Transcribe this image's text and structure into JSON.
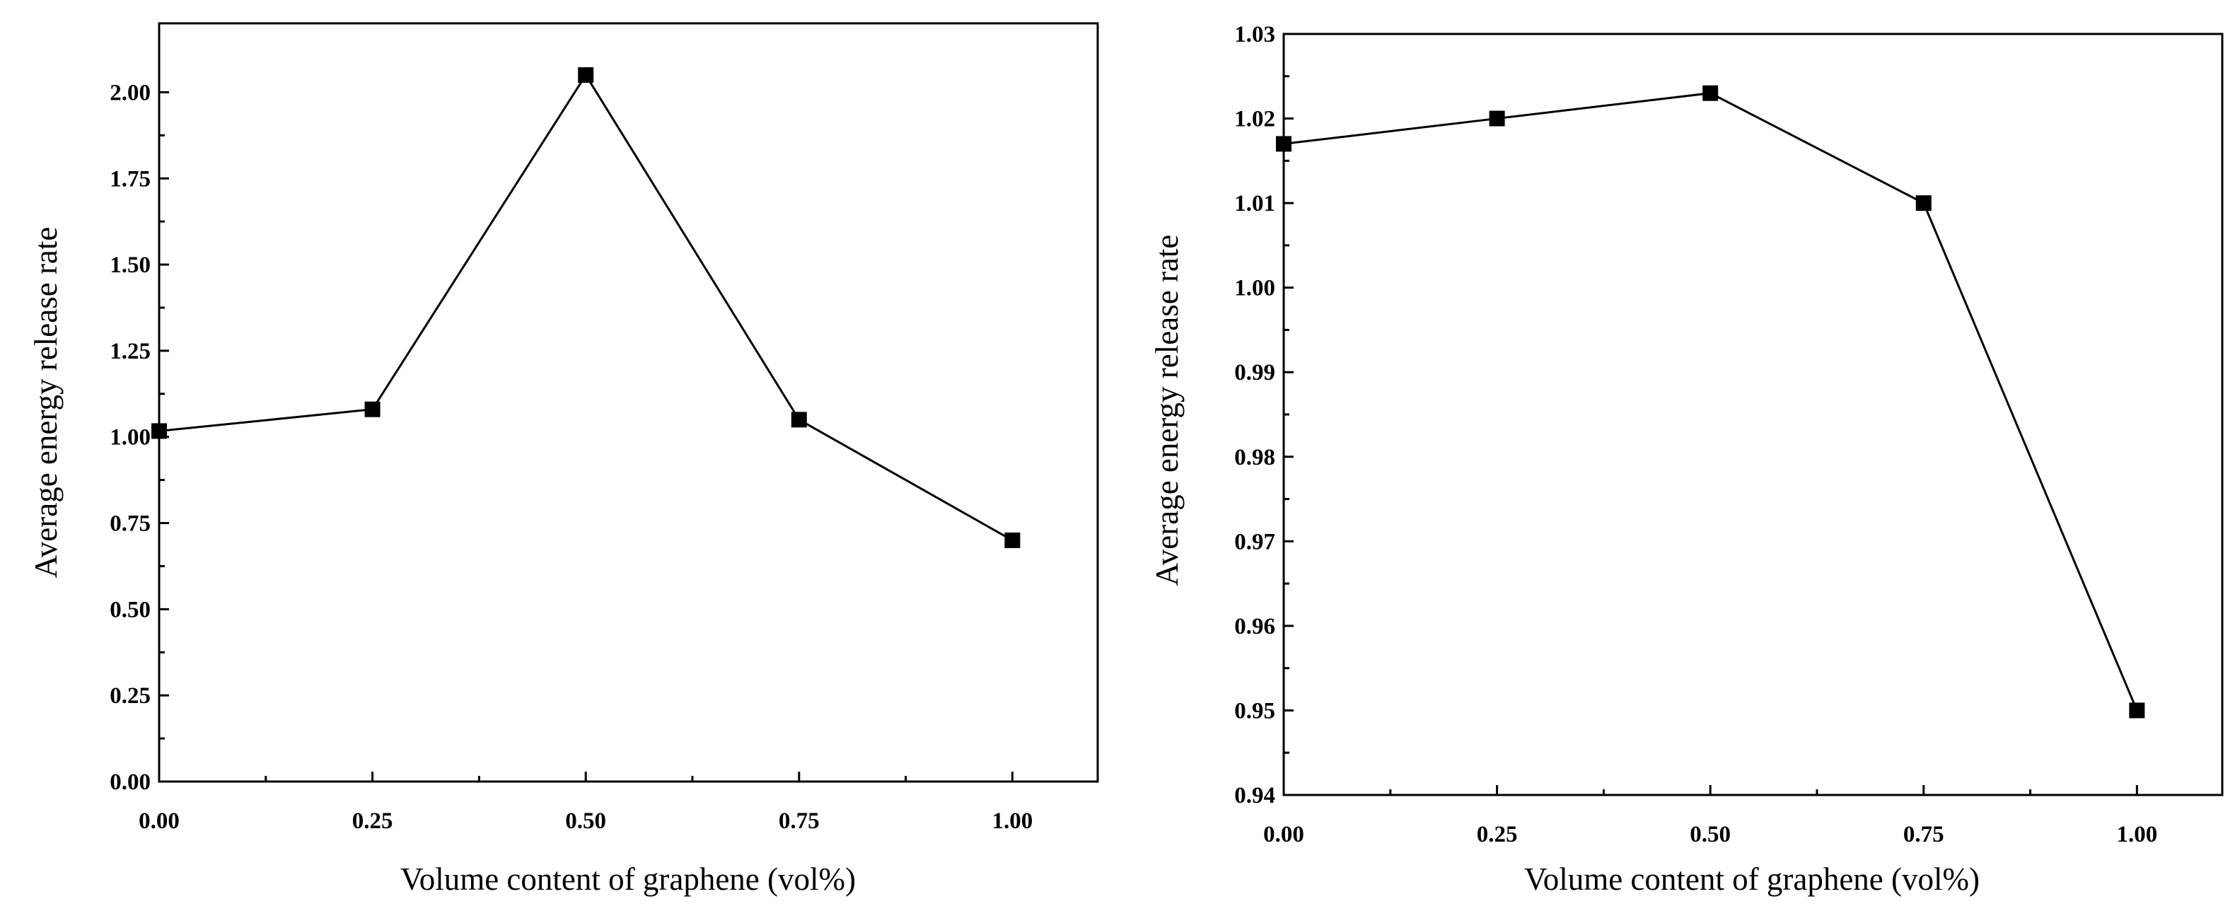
{
  "chart_data": [
    {
      "type": "line",
      "title": "",
      "xlabel": "Volume content of graphene (vol%)",
      "ylabel": "Average energy release rate",
      "xlim": [
        0,
        1.1
      ],
      "ylim": [
        0,
        2.2
      ],
      "xticks": [
        0,
        0.25,
        0.5,
        0.75,
        1.0
      ],
      "xtick_labels": [
        "0.00",
        "0.25",
        "0.50",
        "0.75",
        "1.00"
      ],
      "yticks": [
        0,
        0.25,
        0.5,
        0.75,
        1.0,
        1.25,
        1.5,
        1.75,
        2.0
      ],
      "ytick_labels": [
        "0.00",
        "0.25",
        "0.50",
        "0.75",
        "1.00",
        "1.25",
        "1.50",
        "1.75",
        "2.00"
      ],
      "grid": false,
      "series": [
        {
          "name": "",
          "marker": "square",
          "x": [
            0,
            0.25,
            0.5,
            0.75,
            1.0
          ],
          "values": [
            1.017,
            1.08,
            2.05,
            1.05,
            0.7
          ]
        }
      ]
    },
    {
      "type": "line",
      "title": "",
      "xlabel": "Volume content of graphene (vol%)",
      "ylabel": "Average energy release rate",
      "xlim": [
        0,
        1.1
      ],
      "ylim": [
        0.94,
        1.03
      ],
      "xticks": [
        0,
        0.25,
        0.5,
        0.75,
        1.0
      ],
      "xtick_labels": [
        "0.00",
        "0.25",
        "0.50",
        "0.75",
        "1.00"
      ],
      "yticks": [
        0.94,
        0.95,
        0.96,
        0.97,
        0.98,
        0.99,
        1.0,
        1.01,
        1.02,
        1.03
      ],
      "ytick_labels": [
        "0.94",
        "0.95",
        "0.96",
        "0.97",
        "0.98",
        "0.99",
        "1.00",
        "1.01",
        "1.02",
        "1.03"
      ],
      "grid": false,
      "series": [
        {
          "name": "",
          "marker": "square",
          "x": [
            0,
            0.25,
            0.5,
            0.75,
            1.0
          ],
          "values": [
            1.017,
            1.02,
            1.023,
            1.01,
            0.95
          ]
        }
      ]
    }
  ]
}
